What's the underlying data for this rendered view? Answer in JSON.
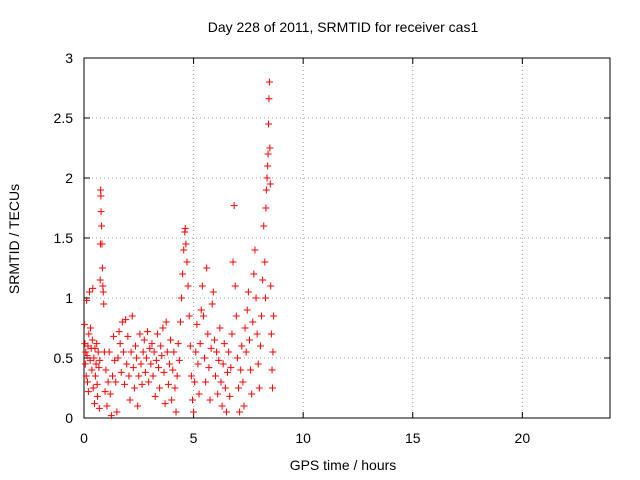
{
  "chart_data": {
    "type": "scatter",
    "title": "Day 228 of 2011, SRMTID for receiver cas1",
    "xlabel": "GPS time / hours",
    "ylabel": "SRMTID / TECUs",
    "xlim": [
      0,
      24
    ],
    "ylim": [
      0,
      3
    ],
    "xticks": [
      0,
      5,
      10,
      15,
      20
    ],
    "xtick_labels": [
      "0",
      "5",
      "10",
      "15",
      "20"
    ],
    "yticks": [
      0,
      0.5,
      1,
      1.5,
      2,
      2.5,
      3
    ],
    "ytick_labels": [
      "0",
      "0.5",
      "1",
      "1.5",
      "2",
      "2.5",
      "3"
    ],
    "grid": true,
    "marker": "+",
    "series": [
      {
        "name": "cas1",
        "color": "#ff0000",
        "points": [
          [
            0.02,
            0.78
          ],
          [
            0.04,
            0.62
          ],
          [
            0.06,
            0.45
          ],
          [
            0.08,
            0.55
          ],
          [
            0.1,
            0.35
          ],
          [
            0.12,
            0.98
          ],
          [
            0.14,
            0.52
          ],
          [
            0.16,
            0.3
          ],
          [
            0.18,
            0.6
          ],
          [
            0.2,
            0.22
          ],
          [
            0.22,
            0.7
          ],
          [
            0.25,
            1.05
          ],
          [
            0.28,
            0.48
          ],
          [
            0.3,
            0.75
          ],
          [
            0.33,
            0.58
          ],
          [
            0.36,
            0.4
          ],
          [
            0.38,
            0.65
          ],
          [
            0.4,
            1.08
          ],
          [
            0.42,
            0.25
          ],
          [
            0.45,
            0.5
          ],
          [
            0.48,
            0.12
          ],
          [
            0.5,
            0.58
          ],
          [
            0.52,
            0.35
          ],
          [
            0.55,
            0.45
          ],
          [
            0.58,
            0.62
          ],
          [
            0.6,
            0.28
          ],
          [
            0.62,
            0.18
          ],
          [
            0.65,
            0.55
          ],
          [
            0.68,
            0.42
          ],
          [
            0.7,
            0.08
          ],
          [
            0.72,
            0.48
          ],
          [
            0.74,
            1.15
          ],
          [
            0.75,
            1.45
          ],
          [
            0.76,
            1.9
          ],
          [
            0.77,
            1.85
          ],
          [
            0.78,
            1.72
          ],
          [
            0.8,
            1.6
          ],
          [
            0.82,
            1.45
          ],
          [
            0.84,
            1.25
          ],
          [
            0.86,
            1.1
          ],
          [
            0.88,
            1.05
          ],
          [
            0.9,
            0.95
          ],
          [
            0.93,
            0.55
          ],
          [
            0.96,
            0.22
          ],
          [
            1.0,
            0.4
          ],
          [
            1.05,
            0.1
          ],
          [
            1.1,
            0.3
          ],
          [
            1.15,
            0.55
          ],
          [
            1.2,
            0.2
          ],
          [
            1.25,
            0.02
          ],
          [
            1.3,
            0.35
          ],
          [
            1.35,
            0.68
          ],
          [
            1.4,
            0.48
          ],
          [
            1.45,
            0.3
          ],
          [
            1.5,
            0.05
          ],
          [
            1.55,
            0.5
          ],
          [
            1.6,
            0.72
          ],
          [
            1.65,
            0.62
          ],
          [
            1.7,
            0.38
          ],
          [
            1.75,
            0.8
          ],
          [
            1.8,
            0.55
          ],
          [
            1.85,
            0.28
          ],
          [
            1.9,
            0.82
          ],
          [
            1.95,
            0.45
          ],
          [
            2.0,
            0.68
          ],
          [
            2.05,
            0.35
          ],
          [
            2.1,
            0.15
          ],
          [
            2.15,
            0.55
          ],
          [
            2.2,
            0.85
          ],
          [
            2.25,
            0.42
          ],
          [
            2.3,
            0.25
          ],
          [
            2.35,
            0.6
          ],
          [
            2.4,
            0.5
          ],
          [
            2.45,
            0.1
          ],
          [
            2.5,
            0.35
          ],
          [
            2.55,
            0.7
          ],
          [
            2.6,
            0.45
          ],
          [
            2.65,
            0.28
          ],
          [
            2.7,
            0.55
          ],
          [
            2.75,
            0.65
          ],
          [
            2.8,
            0.38
          ],
          [
            2.85,
            0.5
          ],
          [
            2.9,
            0.72
          ],
          [
            2.95,
            0.3
          ],
          [
            3.0,
            0.58
          ],
          [
            3.05,
            0.45
          ],
          [
            3.1,
            0.62
          ],
          [
            3.15,
            0.35
          ],
          [
            3.2,
            0.55
          ],
          [
            3.25,
            0.18
          ],
          [
            3.3,
            0.48
          ],
          [
            3.35,
            0.7
          ],
          [
            3.4,
            0.42
          ],
          [
            3.45,
            0.25
          ],
          [
            3.5,
            0.6
          ],
          [
            3.55,
            0.52
          ],
          [
            3.6,
            0.75
          ],
          [
            3.65,
            0.38
          ],
          [
            3.7,
            0.12
          ],
          [
            3.75,
            0.8
          ],
          [
            3.8,
            0.55
          ],
          [
            3.85,
            0.28
          ],
          [
            3.9,
            0.45
          ],
          [
            3.95,
            0.65
          ],
          [
            4.0,
            0.15
          ],
          [
            4.05,
            0.4
          ],
          [
            4.1,
            0.55
          ],
          [
            4.15,
            0.25
          ],
          [
            4.2,
            0.05
          ],
          [
            4.25,
            0.35
          ],
          [
            4.3,
            0.62
          ],
          [
            4.35,
            0.48
          ],
          [
            4.4,
            0.8
          ],
          [
            4.45,
            1.0
          ],
          [
            4.5,
            1.2
          ],
          [
            4.55,
            1.4
          ],
          [
            4.6,
            1.55
          ],
          [
            4.62,
            1.58
          ],
          [
            4.65,
            1.45
          ],
          [
            4.7,
            1.3
          ],
          [
            4.75,
            1.1
          ],
          [
            4.8,
            0.85
          ],
          [
            4.85,
            0.6
          ],
          [
            4.9,
            0.35
          ],
          [
            4.95,
            0.15
          ],
          [
            5.0,
            0.05
          ],
          [
            5.05,
            0.3
          ],
          [
            5.1,
            0.55
          ],
          [
            5.15,
            0.78
          ],
          [
            5.2,
            0.45
          ],
          [
            5.25,
            0.2
          ],
          [
            5.3,
            0.62
          ],
          [
            5.35,
            0.9
          ],
          [
            5.4,
            1.1
          ],
          [
            5.45,
            0.85
          ],
          [
            5.5,
            0.5
          ],
          [
            5.55,
            0.3
          ],
          [
            5.6,
            1.25
          ],
          [
            5.65,
            0.7
          ],
          [
            5.7,
            0.42
          ],
          [
            5.75,
            0.15
          ],
          [
            5.8,
            0.58
          ],
          [
            5.85,
            0.95
          ],
          [
            5.9,
            1.05
          ],
          [
            5.95,
            0.65
          ],
          [
            6.0,
            0.35
          ],
          [
            6.05,
            0.55
          ],
          [
            6.1,
            0.2
          ],
          [
            6.15,
            0.48
          ],
          [
            6.2,
            0.75
          ],
          [
            6.25,
            0.3
          ],
          [
            6.3,
            0.1
          ],
          [
            6.35,
            0.45
          ],
          [
            6.4,
            0.62
          ],
          [
            6.45,
            0.25
          ],
          [
            6.5,
            0.05
          ],
          [
            6.55,
            0.38
          ],
          [
            6.6,
            0.55
          ],
          [
            6.65,
            0.18
          ],
          [
            6.7,
            0.42
          ],
          [
            6.75,
            0.7
          ],
          [
            6.8,
            1.3
          ],
          [
            6.85,
            1.77
          ],
          [
            6.9,
            1.1
          ],
          [
            6.95,
            0.85
          ],
          [
            7.0,
            0.5
          ],
          [
            7.05,
            0.25
          ],
          [
            7.1,
            0.05
          ],
          [
            7.15,
            0.4
          ],
          [
            7.2,
            0.6
          ],
          [
            7.25,
            0.3
          ],
          [
            7.3,
            0.1
          ],
          [
            7.35,
            0.75
          ],
          [
            7.4,
            0.55
          ],
          [
            7.45,
            0.9
          ],
          [
            7.5,
            1.05
          ],
          [
            7.55,
            0.65
          ],
          [
            7.6,
            0.4
          ],
          [
            7.65,
            0.2
          ],
          [
            7.7,
            0.8
          ],
          [
            7.75,
            1.2
          ],
          [
            7.8,
            1.4
          ],
          [
            7.85,
            1.0
          ],
          [
            7.9,
            0.7
          ],
          [
            7.95,
            0.45
          ],
          [
            8.0,
            0.25
          ],
          [
            8.05,
            0.6
          ],
          [
            8.1,
            0.85
          ],
          [
            8.15,
            1.15
          ],
          [
            8.2,
            1.6
          ],
          [
            8.25,
            1.3
          ],
          [
            8.28,
            1.0
          ],
          [
            8.3,
            1.75
          ],
          [
            8.32,
            1.9
          ],
          [
            8.35,
            2.0
          ],
          [
            8.38,
            2.1
          ],
          [
            8.4,
            2.2
          ],
          [
            8.42,
            2.45
          ],
          [
            8.44,
            2.66
          ],
          [
            8.46,
            2.8
          ],
          [
            8.48,
            2.25
          ],
          [
            8.5,
            1.95
          ],
          [
            8.52,
            1.1
          ],
          [
            8.55,
            0.7
          ],
          [
            8.58,
            0.4
          ],
          [
            8.6,
            0.25
          ],
          [
            8.62,
            0.55
          ],
          [
            8.65,
            0.85
          ]
        ]
      }
    ]
  },
  "colors": {
    "series": "#ff0000",
    "grid": "#a0a0a0",
    "axis": "#000000",
    "background": "#ffffff"
  }
}
